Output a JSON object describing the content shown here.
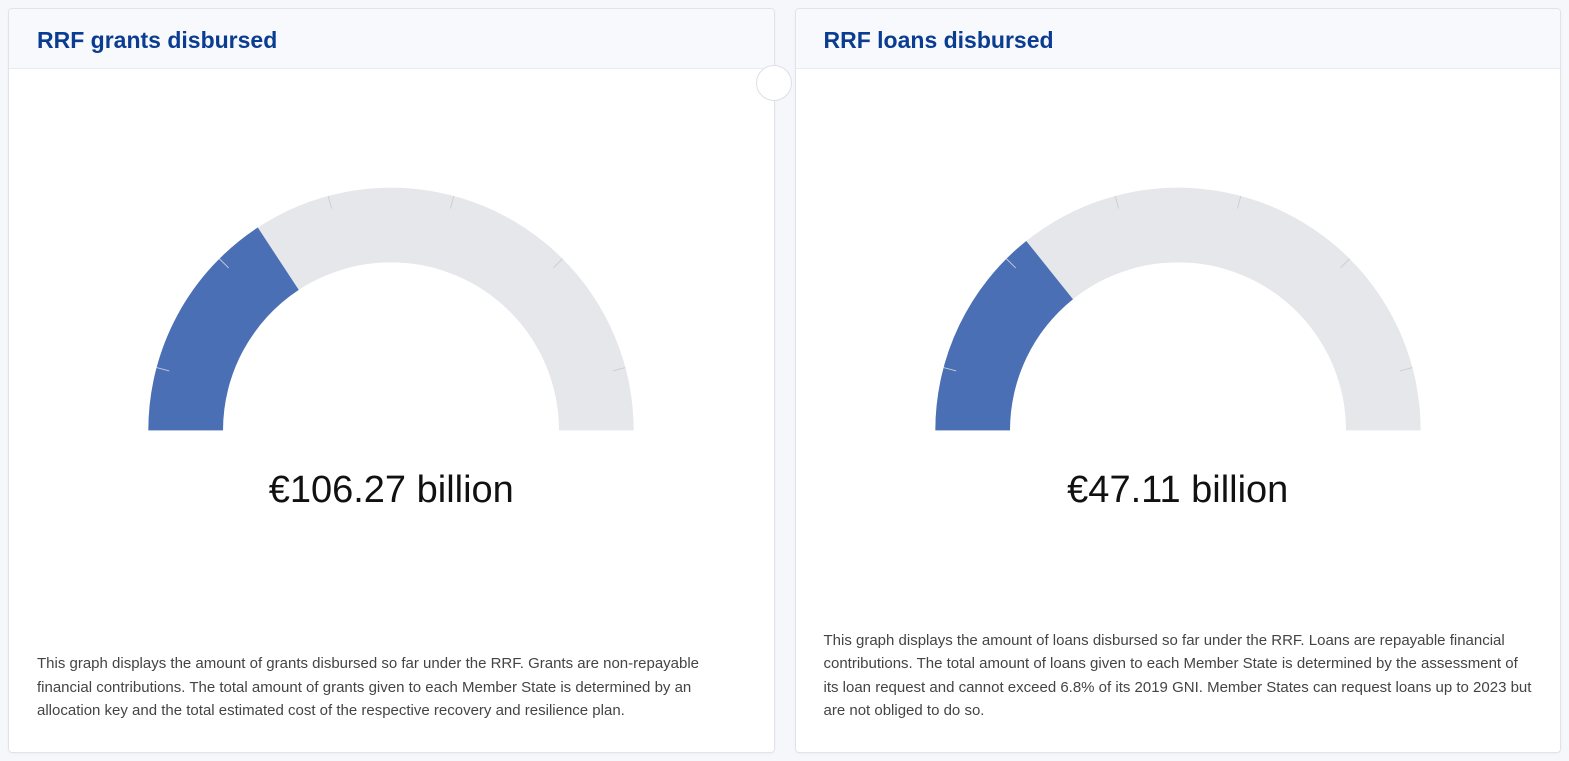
{
  "layout": {
    "page_bg": "#f5f7fa",
    "card_bg": "#ffffff",
    "card_border": "#e0e4ea",
    "header_bg": "#f7f9fc",
    "title_color": "#0a3d91",
    "title_fontsize": 23,
    "value_color": "#111111",
    "value_fontsize": 38,
    "desc_color": "#444444",
    "desc_fontsize": 15
  },
  "gauge_style": {
    "type": "gauge",
    "outer_radius": 260,
    "inner_radius": 180,
    "track_color": "#e6e7ea",
    "fill_color": "#4a6fb5",
    "tick_color": "#c9cdd6",
    "tick_count": 6,
    "tick_length": 14,
    "tick_width": 1,
    "start_angle_deg": 180,
    "end_angle_deg": 0
  },
  "panels": [
    {
      "id": "grants",
      "title": "RRF grants disbursed",
      "value_label": "€106.27 billion",
      "fraction": 0.315,
      "description": "This graph displays the amount of grants disbursed so far under the RRF. Grants are non-repayable financial contributions. The total amount of grants given to each Member State is determined by an allocation key and the total estimated cost of the respective recovery and resilience plan.",
      "show_notch": true
    },
    {
      "id": "loans",
      "title": "RRF loans disbursed",
      "value_label": "€47.11 billion",
      "fraction": 0.285,
      "description": "This graph displays the amount of loans disbursed so far under the RRF. Loans are repayable financial contributions. The total amount of loans given to each Member State is determined by the assessment of its loan request and cannot exceed 6.8% of its 2019 GNI. Member States can request loans up to 2023 but are not obliged to do so.",
      "show_notch": false
    }
  ]
}
